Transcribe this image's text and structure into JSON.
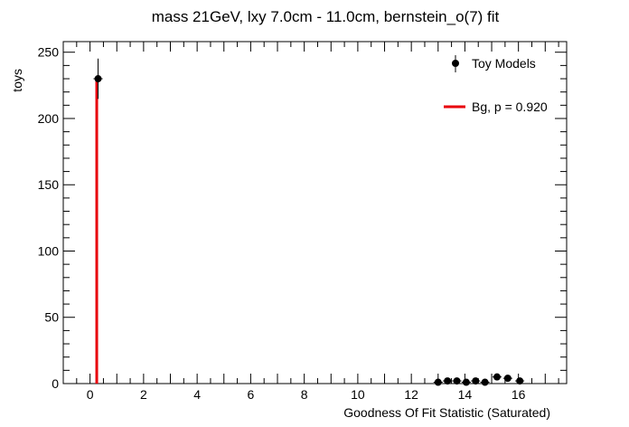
{
  "chart_data": {
    "type": "scatter",
    "title": "mass 21GeV, lxy 7.0cm - 11.0cm, bernstein_o(7) fit",
    "xlabel": "Goodness Of Fit Statistic (Saturated)",
    "ylabel": "toys",
    "xlim": [
      -1.0,
      17.8
    ],
    "ylim": [
      0,
      258
    ],
    "xticks": [
      "0",
      "2",
      "4",
      "6",
      "8",
      "10",
      "12",
      "14",
      "16"
    ],
    "xtick_values": [
      0,
      2,
      4,
      6,
      8,
      10,
      12,
      14,
      16
    ],
    "yticks": [
      "0",
      "50",
      "100",
      "150",
      "200",
      "250"
    ],
    "ytick_values": [
      0,
      50,
      100,
      150,
      200,
      250
    ],
    "series": [
      {
        "name": "Toy Models",
        "color": "#000000",
        "points": [
          {
            "x": 0.3,
            "y": 230,
            "err": 15.2
          },
          {
            "x": 13.0,
            "y": 1,
            "err": 1
          },
          {
            "x": 13.35,
            "y": 2,
            "err": 1.4
          },
          {
            "x": 13.7,
            "y": 2,
            "err": 1.4
          },
          {
            "x": 14.05,
            "y": 1,
            "err": 1
          },
          {
            "x": 14.4,
            "y": 2,
            "err": 1.4
          },
          {
            "x": 14.75,
            "y": 1,
            "err": 1
          },
          {
            "x": 15.2,
            "y": 5,
            "err": 2.2
          },
          {
            "x": 15.6,
            "y": 4,
            "err": 2
          },
          {
            "x": 16.05,
            "y": 2,
            "err": 1.4
          }
        ]
      },
      {
        "name": "Bg, p = 0.920",
        "color": "#e8000b",
        "observed_x": 0.25
      }
    ],
    "legend": {
      "position": "top-right",
      "entries": [
        "Toy Models",
        "Bg, p = 0.920"
      ]
    },
    "grid": false
  }
}
